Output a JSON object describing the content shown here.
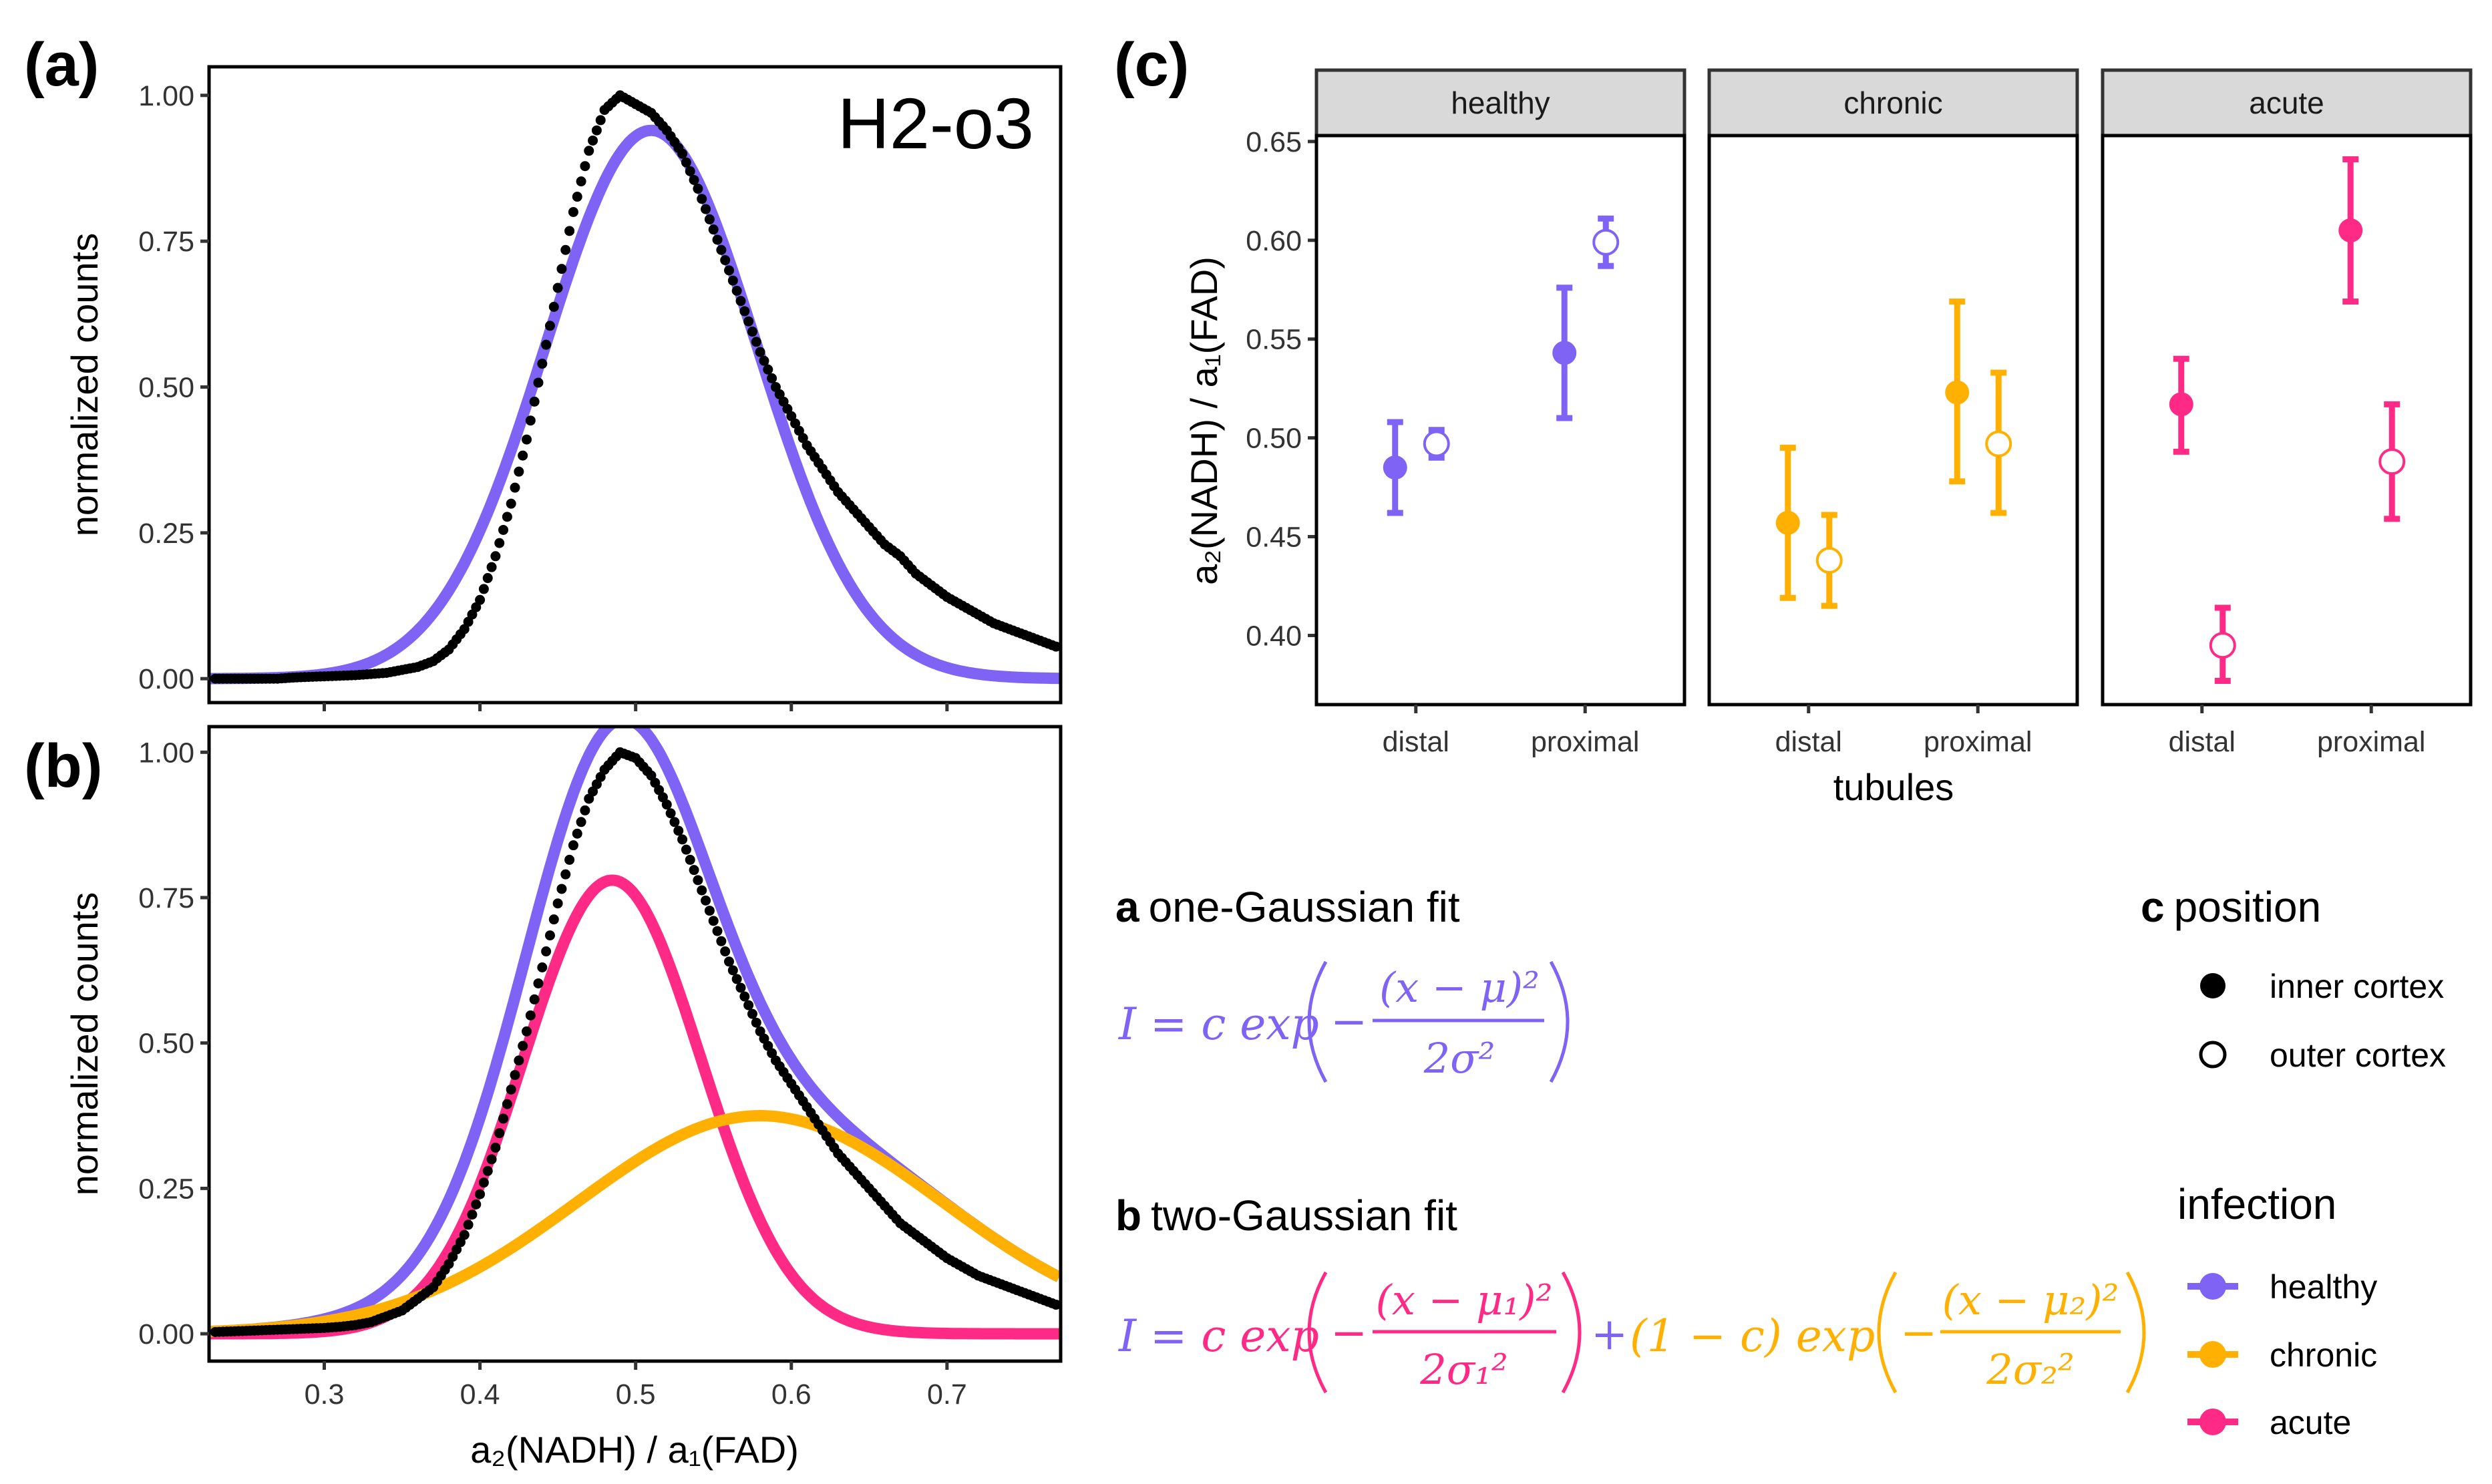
{
  "panel_labels": {
    "a": "(a)",
    "b": "(b)",
    "c": "(c)"
  },
  "colors": {
    "healthy": "#7f63f4",
    "chronic": "#ffb000",
    "acute": "#ff2a85",
    "data": "#000000"
  },
  "chart_data": [
    {
      "id": "a",
      "type": "scatter",
      "title": "H2-o3",
      "ylabel": "normalized counts",
      "xlabel": "",
      "xlim": [
        0.226,
        0.773
      ],
      "ylim": [
        -0.041,
        1.049
      ],
      "xticks": [
        0.3,
        0.4,
        0.5,
        0.6,
        0.7
      ],
      "xtick_labels_shown": false,
      "yticks": [
        0,
        0.25,
        0.5,
        0.75,
        1.0
      ],
      "ytick_labels": [
        "0.00",
        "0.25",
        "0.50",
        "0.75",
        "1.00"
      ],
      "data_x": [
        0.23,
        0.24,
        0.25,
        0.26,
        0.27,
        0.28,
        0.29,
        0.3,
        0.31,
        0.32,
        0.33,
        0.34,
        0.35,
        0.36,
        0.37,
        0.38,
        0.39,
        0.4,
        0.41,
        0.42,
        0.43,
        0.44,
        0.45,
        0.46,
        0.47,
        0.48,
        0.49,
        0.5,
        0.51,
        0.52,
        0.53,
        0.54,
        0.55,
        0.56,
        0.57,
        0.58,
        0.59,
        0.6,
        0.61,
        0.62,
        0.63,
        0.64,
        0.65,
        0.66,
        0.67,
        0.68,
        0.69,
        0.7,
        0.71,
        0.72,
        0.73,
        0.74,
        0.75,
        0.76,
        0.77
      ],
      "data_y": [
        0,
        0,
        0,
        0,
        0,
        0.002,
        0.003,
        0.004,
        0.005,
        0.006,
        0.008,
        0.01,
        0.015,
        0.02,
        0.03,
        0.05,
        0.085,
        0.135,
        0.21,
        0.3,
        0.41,
        0.54,
        0.67,
        0.8,
        0.905,
        0.975,
        1.0,
        0.985,
        0.97,
        0.94,
        0.9,
        0.84,
        0.77,
        0.7,
        0.63,
        0.56,
        0.5,
        0.45,
        0.4,
        0.36,
        0.32,
        0.29,
        0.26,
        0.23,
        0.21,
        0.18,
        0.16,
        0.14,
        0.125,
        0.11,
        0.095,
        0.085,
        0.075,
        0.065,
        0.055
      ],
      "fits": [
        {
          "name": "healthy",
          "amplitude": 0.94,
          "mu": 0.51,
          "sigma": 0.068
        }
      ]
    },
    {
      "id": "b",
      "type": "scatter",
      "title": "",
      "ylabel": "normalized counts",
      "xlabel": "a₂(NADH) / a₁(FAD)",
      "xlim": [
        0.226,
        0.773
      ],
      "ylim": [
        -0.047,
        1.044
      ],
      "xticks": [
        0.3,
        0.4,
        0.5,
        0.6,
        0.7
      ],
      "xtick_labels": [
        "0.3",
        "0.4",
        "0.5",
        "0.6",
        "0.7"
      ],
      "yticks": [
        0,
        0.25,
        0.5,
        0.75,
        1.0
      ],
      "ytick_labels": [
        "0.00",
        "0.25",
        "0.50",
        "0.75",
        "1.00"
      ],
      "data_x": [
        0.23,
        0.24,
        0.25,
        0.26,
        0.27,
        0.28,
        0.29,
        0.3,
        0.31,
        0.32,
        0.33,
        0.34,
        0.35,
        0.36,
        0.37,
        0.38,
        0.39,
        0.4,
        0.41,
        0.42,
        0.43,
        0.44,
        0.45,
        0.46,
        0.47,
        0.48,
        0.49,
        0.5,
        0.51,
        0.52,
        0.53,
        0.54,
        0.55,
        0.56,
        0.57,
        0.58,
        0.59,
        0.6,
        0.61,
        0.62,
        0.63,
        0.64,
        0.65,
        0.66,
        0.67,
        0.68,
        0.69,
        0.7,
        0.71,
        0.72,
        0.73,
        0.74,
        0.75,
        0.76,
        0.77
      ],
      "data_y": [
        0.003,
        0.004,
        0.005,
        0.006,
        0.007,
        0.008,
        0.009,
        0.01,
        0.012,
        0.015,
        0.02,
        0.03,
        0.04,
        0.06,
        0.08,
        0.12,
        0.17,
        0.24,
        0.32,
        0.42,
        0.52,
        0.63,
        0.74,
        0.84,
        0.92,
        0.97,
        1.0,
        0.99,
        0.96,
        0.91,
        0.85,
        0.78,
        0.71,
        0.64,
        0.58,
        0.52,
        0.47,
        0.43,
        0.39,
        0.35,
        0.31,
        0.28,
        0.25,
        0.22,
        0.19,
        0.17,
        0.15,
        0.13,
        0.115,
        0.1,
        0.09,
        0.08,
        0.07,
        0.06,
        0.05
      ],
      "fits": [
        {
          "name": "acute",
          "amplitude": 0.78,
          "mu": 0.485,
          "sigma": 0.057
        },
        {
          "name": "chronic",
          "amplitude": 0.375,
          "mu": 0.58,
          "sigma": 0.117
        }
      ],
      "sum_fit_color": "healthy"
    },
    {
      "id": "c",
      "type": "pointrange",
      "ylabel": "a₂(NADH) / a₁(FAD)",
      "xlabel": "tubules",
      "ylim": [
        0.365,
        0.653
      ],
      "yticks": [
        0.4,
        0.45,
        0.5,
        0.55,
        0.6,
        0.65
      ],
      "ytick_labels": [
        "0.40",
        "0.45",
        "0.50",
        "0.55",
        "0.60",
        "0.65"
      ],
      "categories": [
        "distal",
        "proximal"
      ],
      "facets": [
        {
          "name": "healthy",
          "points": [
            {
              "tubule": "distal",
              "position": "inner cortex",
              "mean": 0.485,
              "low": 0.462,
              "high": 0.508
            },
            {
              "tubule": "distal",
              "position": "outer cortex",
              "mean": 0.497,
              "low": 0.49,
              "high": 0.504
            },
            {
              "tubule": "proximal",
              "position": "inner cortex",
              "mean": 0.543,
              "low": 0.51,
              "high": 0.576
            },
            {
              "tubule": "proximal",
              "position": "outer cortex",
              "mean": 0.599,
              "low": 0.587,
              "high": 0.611
            }
          ]
        },
        {
          "name": "chronic",
          "points": [
            {
              "tubule": "distal",
              "position": "inner cortex",
              "mean": 0.457,
              "low": 0.419,
              "high": 0.495
            },
            {
              "tubule": "distal",
              "position": "outer cortex",
              "mean": 0.438,
              "low": 0.415,
              "high": 0.461
            },
            {
              "tubule": "proximal",
              "position": "inner cortex",
              "mean": 0.523,
              "low": 0.478,
              "high": 0.569
            },
            {
              "tubule": "proximal",
              "position": "outer cortex",
              "mean": 0.497,
              "low": 0.462,
              "high": 0.533
            }
          ]
        },
        {
          "name": "acute",
          "points": [
            {
              "tubule": "distal",
              "position": "inner cortex",
              "mean": 0.517,
              "low": 0.493,
              "high": 0.54
            },
            {
              "tubule": "distal",
              "position": "outer cortex",
              "mean": 0.395,
              "low": 0.377,
              "high": 0.414
            },
            {
              "tubule": "proximal",
              "position": "inner cortex",
              "mean": 0.605,
              "low": 0.569,
              "high": 0.641
            },
            {
              "tubule": "proximal",
              "position": "outer cortex",
              "mean": 0.488,
              "low": 0.459,
              "high": 0.517
            }
          ]
        }
      ]
    }
  ],
  "equations": {
    "a_title_letter": "a",
    "a_title": "one-Gaussian fit",
    "a_lhs": "I = c exp",
    "a_minus": "−",
    "a_num": "(x − μ)²",
    "a_den": "2σ²",
    "b_title_letter": "b",
    "b_title": "two-Gaussian fit",
    "b_lhs": "I = ",
    "b_c_exp": "c exp",
    "b_minus1": "−",
    "b_num1": "(x − μ₁)²",
    "b_den1": "2σ₁²",
    "b_plus": "+",
    "b_c2_exp": "(1 − c) exp",
    "b_minus2": "−",
    "b_num2": "(x − μ₂)²",
    "b_den2": "2σ₂²"
  },
  "legend": {
    "position_letter": "c",
    "position_title": "position",
    "position_items": [
      "inner cortex",
      "outer cortex"
    ],
    "infection_title": "infection",
    "infection_items": [
      "healthy",
      "chronic",
      "acute"
    ]
  }
}
